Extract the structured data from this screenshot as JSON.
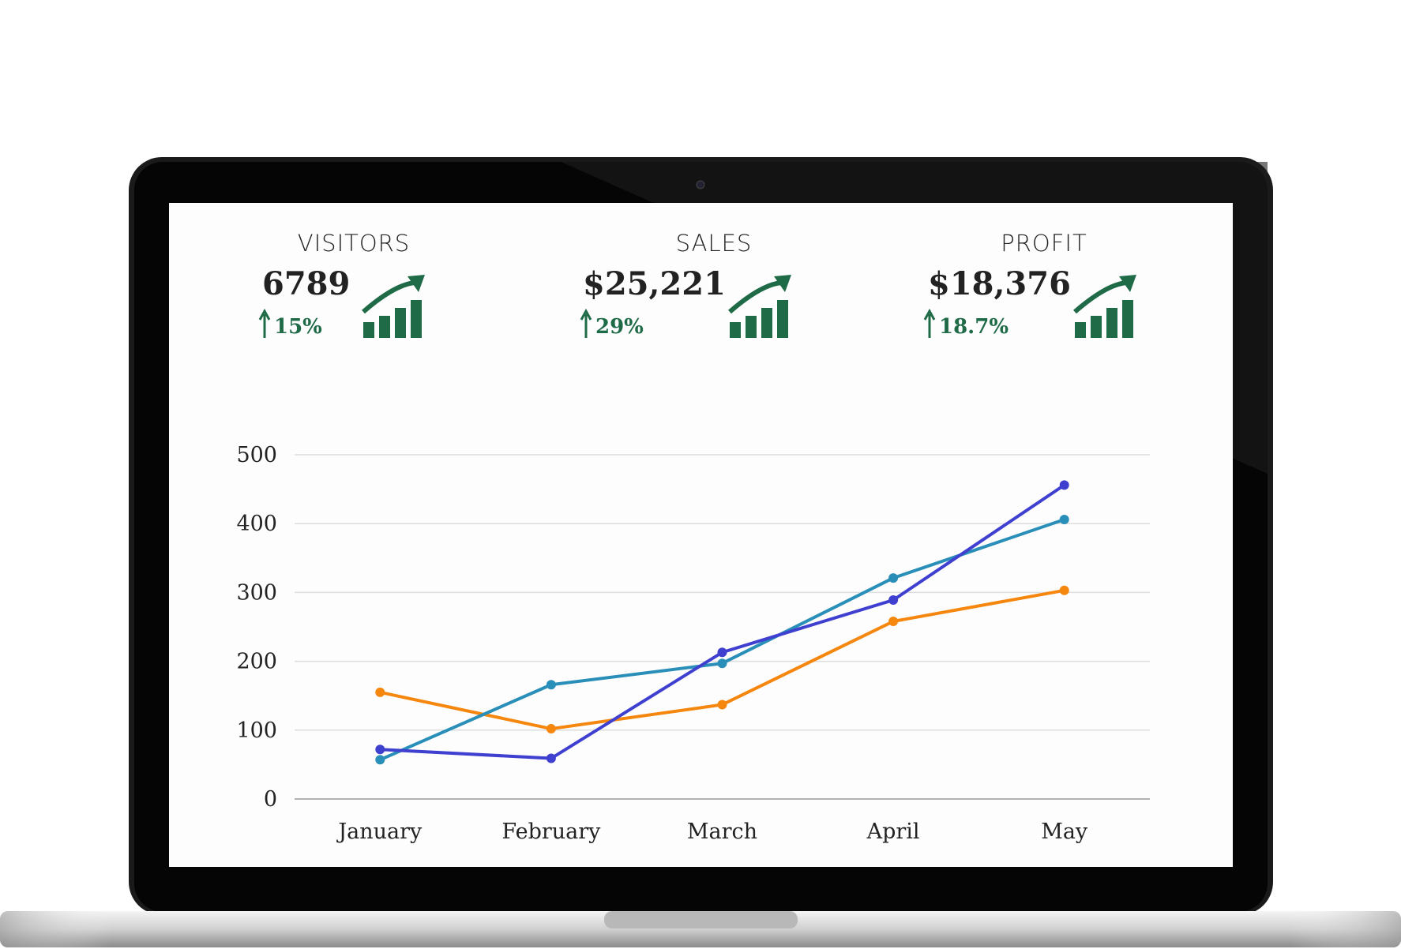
{
  "kpis": [
    {
      "label": "VISITORS",
      "value": "6789",
      "change": "15%"
    },
    {
      "label": "SALES",
      "value": "$25,221",
      "change": "29%"
    },
    {
      "label": "PROFIT",
      "value": "$18,376",
      "change": "18.7%"
    }
  ],
  "chart_data": {
    "type": "line",
    "categories": [
      "January",
      "February",
      "March",
      "April",
      "May"
    ],
    "series": [
      {
        "color": "#f5870f",
        "values": [
          155,
          102,
          137,
          258,
          303
        ]
      },
      {
        "color": "#2a8fb8",
        "values": [
          57,
          166,
          197,
          321,
          406
        ]
      },
      {
        "color": "#3f3fd0",
        "values": [
          72,
          59,
          213,
          289,
          456
        ]
      }
    ],
    "ylim": [
      0,
      500
    ],
    "yticks": [
      0,
      100,
      200,
      300,
      400,
      500
    ],
    "grid": true
  }
}
